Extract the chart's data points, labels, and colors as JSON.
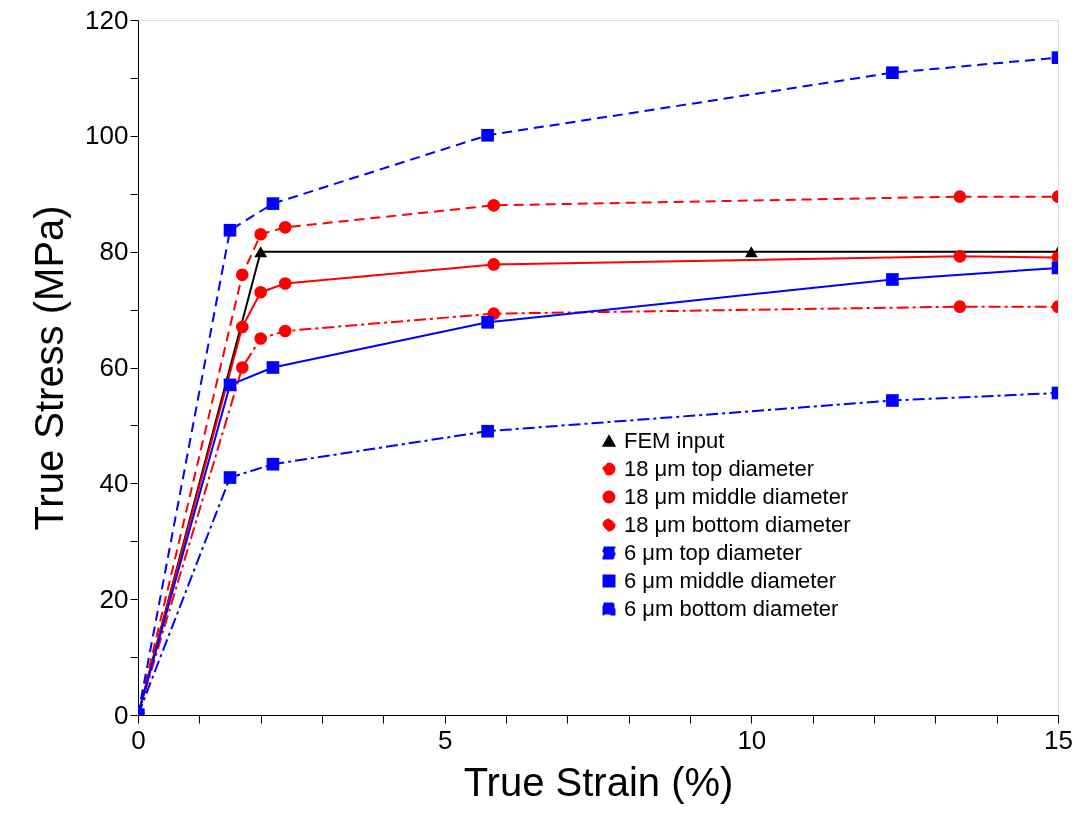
{
  "chart_data": {
    "type": "line",
    "xlabel": "True Strain (%)",
    "ylabel": "True Stress (MPa)",
    "xlim": [
      0,
      15
    ],
    "ylim": [
      0,
      120
    ],
    "xticks": [
      0,
      {
        "value": 1,
        "label": null
      },
      {
        "value": 2,
        "label": null
      },
      {
        "value": 3,
        "label": null
      },
      {
        "value": 4,
        "label": null
      },
      5,
      {
        "value": 6,
        "label": null
      },
      {
        "value": 7,
        "label": null
      },
      {
        "value": 8,
        "label": null
      },
      {
        "value": 9,
        "label": null
      },
      10,
      {
        "value": 11,
        "label": null
      },
      {
        "value": 12,
        "label": null
      },
      {
        "value": 13,
        "label": null
      },
      {
        "value": 14,
        "label": null
      },
      15
    ],
    "yticks": [
      0,
      {
        "value": 10,
        "label": null
      },
      20,
      {
        "value": 30,
        "label": null
      },
      40,
      {
        "value": 50,
        "label": null
      },
      60,
      {
        "value": 70,
        "label": null
      },
      80,
      {
        "value": 90,
        "label": null
      },
      100,
      {
        "value": 110,
        "label": null
      },
      120
    ],
    "grid": false,
    "legend": "bottom right",
    "series": [
      {
        "name": "FEM input",
        "color": "#000000",
        "marker": "triangle",
        "line_style": "solid",
        "x": [
          0,
          2,
          10,
          15
        ],
        "values": [
          0,
          80,
          80,
          80
        ]
      },
      {
        "name": "18 μm top diameter",
        "color": "#ff0000",
        "marker": "circle",
        "line_style": "dotted",
        "x": [
          0,
          1.7,
          2.0,
          2.4,
          5.8,
          13.4,
          15
        ],
        "values": [
          0,
          60,
          65,
          66.3,
          69.3,
          70.5,
          70.5
        ]
      },
      {
        "name": "18 μm middle diameter",
        "color": "#ff0000",
        "marker": "circle",
        "line_style": "solid",
        "x": [
          0,
          1.7,
          2.0,
          2.4,
          5.8,
          13.4,
          15
        ],
        "values": [
          0,
          67,
          73,
          74.5,
          77.8,
          79.2,
          79
        ]
      },
      {
        "name": "18 μm bottom diameter",
        "color": "#ff0000",
        "marker": "circle",
        "line_style": "dashed",
        "x": [
          0,
          1.7,
          2.0,
          2.4,
          5.8,
          13.4,
          15
        ],
        "values": [
          0,
          76,
          83,
          84.2,
          88,
          89.5,
          89.5
        ]
      },
      {
        "name": "6 μm top diameter",
        "color": "#0000ff",
        "marker": "square",
        "line_style": "dotted",
        "x": [
          0,
          1.5,
          2.2,
          5.7,
          12.3,
          15
        ],
        "values": [
          0,
          41,
          43.3,
          49,
          54.3,
          55.6
        ]
      },
      {
        "name": "6 μm middle diameter",
        "color": "#0000ff",
        "marker": "square",
        "line_style": "solid",
        "x": [
          0,
          1.5,
          2.2,
          5.7,
          12.3,
          15
        ],
        "values": [
          0,
          57,
          60,
          67.8,
          75.2,
          77.2
        ]
      },
      {
        "name": "6 μm bottom diameter",
        "color": "#0000ff",
        "marker": "square",
        "line_style": "dashed",
        "x": [
          0,
          1.5,
          2.2,
          5.7,
          12.3,
          15
        ],
        "values": [
          0,
          83.7,
          88.3,
          100.1,
          110.9,
          113.5
        ]
      }
    ]
  }
}
